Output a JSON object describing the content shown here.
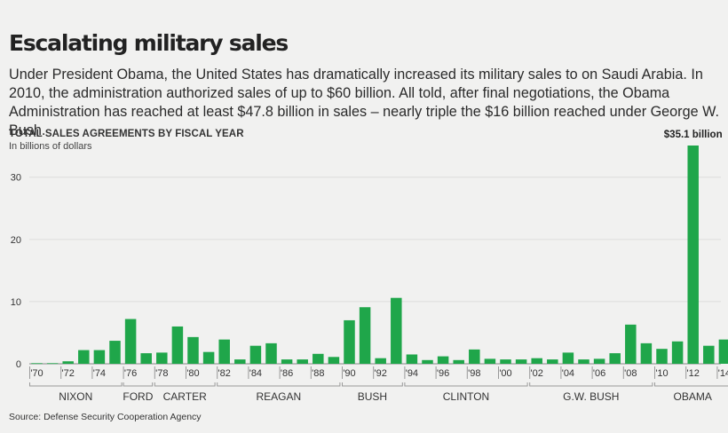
{
  "header": {
    "title": "Escalating military sales",
    "intro": "Under President Obama, the United States has dramatically increased its military sales to on Saudi Arabia. In 2010, the administration authorized sales of up to $60 billion. All told, after final negotiations, the Obama Administration has reached at least $47.8 billion in sales – nearly triple the $16 billion reached under George W. Bush."
  },
  "footer": {
    "source": "Source: Defense Security Cooperation Agency"
  },
  "colors": {
    "bar": "#1fa64a",
    "grid": "#dcdcdc",
    "axis": "#888888",
    "background": "#f1f1f0"
  },
  "chart_data": {
    "type": "bar",
    "title": "TOTAL SALES AGREEMENTS BY FISCAL YEAR",
    "subtitle": "In billions of dollars",
    "xlabel": "",
    "ylabel": "",
    "ylim": [
      0,
      35.1
    ],
    "yticks": [
      0,
      10,
      20,
      30
    ],
    "grid": true,
    "categories": [
      "1970",
      "1971",
      "1972",
      "1973",
      "1974",
      "1975",
      "1976",
      "1977",
      "1978",
      "1979",
      "1980",
      "1981",
      "1982",
      "1983",
      "1984",
      "1985",
      "1986",
      "1987",
      "1988",
      "1989",
      "1990",
      "1991",
      "1992",
      "1993",
      "1994",
      "1995",
      "1996",
      "1997",
      "1998",
      "1999",
      "2000",
      "2001",
      "2002",
      "2003",
      "2004",
      "2005",
      "2006",
      "2007",
      "2008",
      "2009",
      "2010",
      "2011",
      "2012",
      "2013",
      "2014"
    ],
    "values": [
      0.1,
      0.1,
      0.4,
      2.2,
      2.2,
      3.7,
      7.2,
      1.7,
      1.8,
      6.0,
      4.3,
      1.9,
      3.9,
      0.7,
      2.9,
      3.3,
      0.7,
      0.7,
      1.6,
      1.1,
      7.0,
      9.1,
      0.9,
      10.6,
      1.5,
      0.6,
      1.2,
      0.6,
      2.3,
      0.8,
      0.7,
      0.7,
      0.9,
      0.7,
      1.8,
      0.7,
      0.8,
      1.7,
      6.3,
      3.3,
      2.4,
      3.6,
      35.1,
      2.9,
      3.9
    ],
    "x_tick_labels": [
      {
        "year": "1970",
        "label": "'70"
      },
      {
        "year": "1972",
        "label": "'72"
      },
      {
        "year": "1974",
        "label": "'74"
      },
      {
        "year": "1976",
        "label": "'76"
      },
      {
        "year": "1978",
        "label": "'78"
      },
      {
        "year": "1980",
        "label": "'80"
      },
      {
        "year": "1982",
        "label": "'82"
      },
      {
        "year": "1984",
        "label": "'84"
      },
      {
        "year": "1986",
        "label": "'86"
      },
      {
        "year": "1988",
        "label": "'88"
      },
      {
        "year": "1990",
        "label": "'90"
      },
      {
        "year": "1992",
        "label": "'92"
      },
      {
        "year": "1994",
        "label": "'94"
      },
      {
        "year": "1996",
        "label": "'96"
      },
      {
        "year": "1998",
        "label": "'98"
      },
      {
        "year": "2000",
        "label": "'00"
      },
      {
        "year": "2002",
        "label": "'02"
      },
      {
        "year": "2004",
        "label": "'04"
      },
      {
        "year": "2006",
        "label": "'06"
      },
      {
        "year": "2008",
        "label": "'08"
      },
      {
        "year": "2010",
        "label": "'10"
      },
      {
        "year": "2012",
        "label": "'12"
      },
      {
        "year": "2014",
        "label": "'14"
      }
    ],
    "eras": [
      {
        "name": "NIXON",
        "start": "1970",
        "end": "1976"
      },
      {
        "name": "FORD",
        "start": "1976",
        "end": "1977"
      },
      {
        "name": "CARTER",
        "start": "1978",
        "end": "1981"
      },
      {
        "name": "REAGAN",
        "start": "1982",
        "end": "1989"
      },
      {
        "name": "BUSH",
        "start": "1990",
        "end": "1993"
      },
      {
        "name": "CLINTON",
        "start": "1994",
        "end": "2001"
      },
      {
        "name": "G.W. BUSH",
        "start": "2002",
        "end": "2009"
      },
      {
        "name": "OBAMA",
        "start": "2010",
        "end": "2014"
      }
    ],
    "annotations": [
      {
        "year": "2012",
        "text": "$35.1 billion"
      }
    ]
  }
}
